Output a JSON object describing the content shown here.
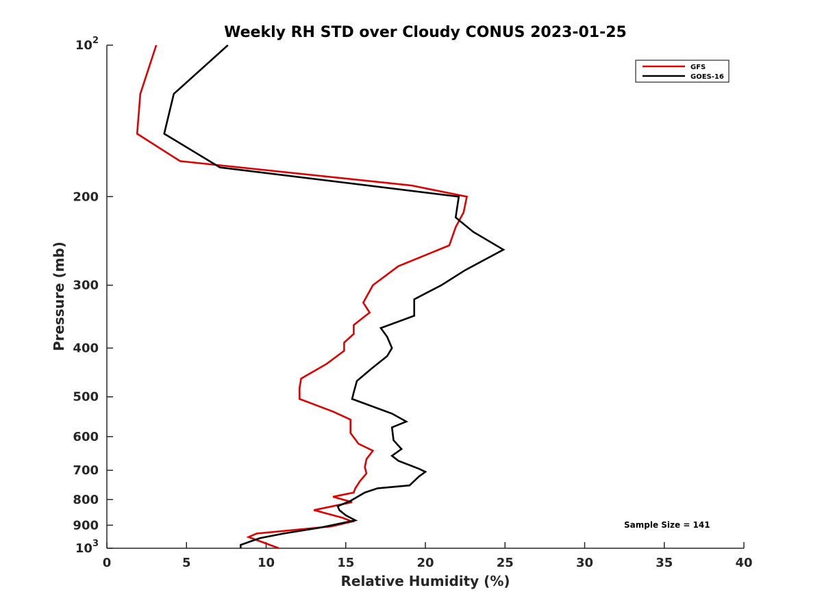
{
  "chart_data": {
    "type": "line",
    "title": "Weekly RH STD over Cloudy CONUS 2023-01-25",
    "xlabel": "Relative Humidity (%)",
    "ylabel": "Pressure (mb)",
    "xlim": [
      0,
      40
    ],
    "ylim": [
      100,
      1000
    ],
    "y_scale": "log",
    "y_reversed": true,
    "x_ticks": [
      0,
      5,
      10,
      15,
      20,
      25,
      30,
      35,
      40
    ],
    "y_ticks": [
      {
        "value": 100,
        "base": "10",
        "exp": "2"
      },
      {
        "value": 200,
        "label": "200"
      },
      {
        "value": 300,
        "label": "300"
      },
      {
        "value": 400,
        "label": "400"
      },
      {
        "value": 500,
        "label": "500"
      },
      {
        "value": 600,
        "label": "600"
      },
      {
        "value": 700,
        "label": "700"
      },
      {
        "value": 800,
        "label": "800"
      },
      {
        "value": 900,
        "label": "900"
      },
      {
        "value": 1000,
        "base": "10",
        "exp": "3"
      }
    ],
    "grid": false,
    "legend_position": "top-right",
    "series": [
      {
        "name": "GFS",
        "color": "#e00000",
        "points": [
          [
            3.1,
            100
          ],
          [
            2.1,
            125
          ],
          [
            1.9,
            150
          ],
          [
            4.6,
            170
          ],
          [
            19.1,
            190
          ],
          [
            22.6,
            200
          ],
          [
            22.4,
            215
          ],
          [
            21.9,
            230
          ],
          [
            21.5,
            250
          ],
          [
            18.3,
            275
          ],
          [
            16.7,
            300
          ],
          [
            16.1,
            325
          ],
          [
            16.5,
            340
          ],
          [
            15.5,
            360
          ],
          [
            15.5,
            375
          ],
          [
            14.9,
            390
          ],
          [
            14.9,
            405
          ],
          [
            13.8,
            430
          ],
          [
            12.2,
            460
          ],
          [
            12.1,
            480
          ],
          [
            12.1,
            505
          ],
          [
            14.2,
            535
          ],
          [
            15.3,
            555
          ],
          [
            15.3,
            590
          ],
          [
            15.8,
            620
          ],
          [
            16.7,
            640
          ],
          [
            16.3,
            665
          ],
          [
            16.2,
            690
          ],
          [
            16.3,
            710
          ],
          [
            15.9,
            735
          ],
          [
            15.6,
            760
          ],
          [
            15.5,
            775
          ],
          [
            14.2,
            790
          ],
          [
            15.4,
            810
          ],
          [
            13.0,
            840
          ],
          [
            14.8,
            870
          ],
          [
            15.4,
            885
          ],
          [
            14.1,
            905
          ],
          [
            9.4,
            935
          ],
          [
            8.9,
            950
          ],
          [
            10.8,
            1000
          ]
        ]
      },
      {
        "name": "GOES-16",
        "color": "#000000",
        "points": [
          [
            7.6,
            100
          ],
          [
            4.2,
            125
          ],
          [
            3.6,
            150
          ],
          [
            7.1,
            175
          ],
          [
            22.1,
            200
          ],
          [
            21.9,
            220
          ],
          [
            23.0,
            235
          ],
          [
            24.9,
            255
          ],
          [
            22.5,
            280
          ],
          [
            21.0,
            300
          ],
          [
            19.3,
            320
          ],
          [
            19.3,
            345
          ],
          [
            17.2,
            365
          ],
          [
            17.6,
            380
          ],
          [
            17.9,
            400
          ],
          [
            17.6,
            415
          ],
          [
            16.6,
            440
          ],
          [
            15.7,
            465
          ],
          [
            15.5,
            490
          ],
          [
            15.4,
            505
          ],
          [
            17.9,
            540
          ],
          [
            18.8,
            560
          ],
          [
            17.9,
            575
          ],
          [
            18.0,
            610
          ],
          [
            18.5,
            635
          ],
          [
            17.9,
            655
          ],
          [
            18.3,
            670
          ],
          [
            19.6,
            695
          ],
          [
            20.0,
            705
          ],
          [
            19.6,
            720
          ],
          [
            19.0,
            750
          ],
          [
            17.0,
            760
          ],
          [
            16.2,
            775
          ],
          [
            15.3,
            805
          ],
          [
            14.5,
            825
          ],
          [
            14.6,
            840
          ],
          [
            15.0,
            860
          ],
          [
            15.6,
            880
          ],
          [
            13.4,
            910
          ],
          [
            11.1,
            935
          ],
          [
            9.6,
            955
          ],
          [
            8.4,
            985
          ],
          [
            8.4,
            1000
          ]
        ]
      }
    ],
    "annotation": "Sample Size = 141"
  }
}
